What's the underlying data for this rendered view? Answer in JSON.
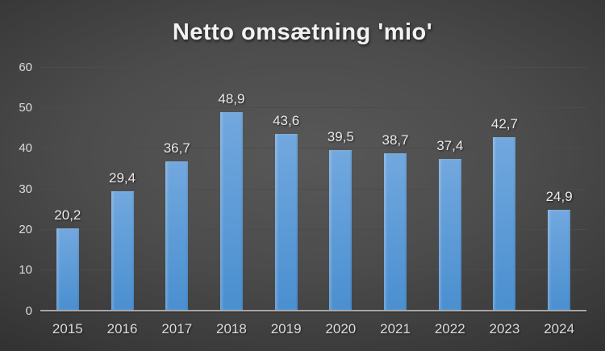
{
  "title": "Netto omsætning 'mio'",
  "chart_data": {
    "type": "bar",
    "title": "Netto omsætning 'mio'",
    "categories": [
      "2015",
      "2016",
      "2017",
      "2018",
      "2019",
      "2020",
      "2021",
      "2022",
      "2023",
      "2024"
    ],
    "values": [
      20.2,
      29.4,
      36.7,
      48.9,
      43.6,
      39.5,
      38.7,
      37.4,
      42.7,
      24.9
    ],
    "value_labels": [
      "20,2",
      "29,4",
      "36,7",
      "48,9",
      "43,6",
      "39,5",
      "38,7",
      "37,4",
      "42,7",
      "24,9"
    ],
    "xlabel": "",
    "ylabel": "",
    "ylim": [
      0,
      60
    ],
    "ytick_interval": 10,
    "ytick_labels": [
      "0",
      "10",
      "20",
      "30",
      "40",
      "50",
      "60"
    ],
    "grid": true,
    "legend": false,
    "decimal_separator": ",",
    "colors": {
      "bar_top": "#72a8de",
      "bar_bottom": "#4a8fd0",
      "background_center": "#565656",
      "background_edge": "#1b1b1b",
      "gridline": "#4c4c4c",
      "axis_line": "#a8a8a8",
      "value_label_text": "#eaeaea",
      "tick_text": "#dcdcdc",
      "title_text": "#f2f2f2"
    }
  }
}
